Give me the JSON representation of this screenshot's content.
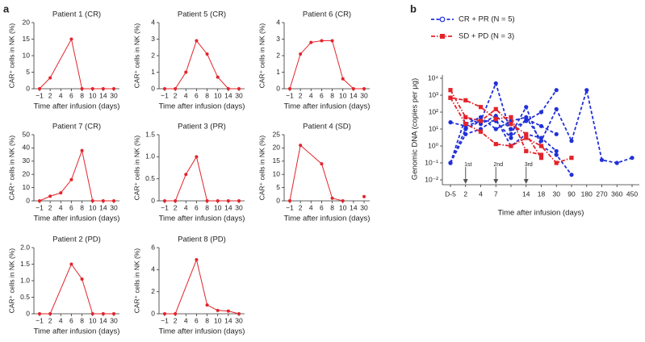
{
  "panel_labels": [
    "a",
    "b"
  ],
  "chart_data": [
    {
      "type": "line",
      "title": "Patient 1 (CR)",
      "xlabel": "Time after infusion (days)",
      "ylabel": "CAR⁺ cells in NK (%)",
      "color": "#e3232a",
      "categories": [
        "−1",
        "2",
        "4",
        "6",
        "8",
        "10",
        "14",
        "30"
      ],
      "x": [
        "−1",
        "2",
        "6",
        "8",
        "10",
        "14",
        "30"
      ],
      "values": [
        0,
        3.3,
        15,
        0,
        0,
        0,
        0
      ],
      "ylim": [
        0,
        20
      ],
      "yticks": [
        0,
        5,
        10,
        15,
        20
      ]
    },
    {
      "type": "line",
      "title": "Patient 5 (CR)",
      "xlabel": "Time after infusion (days)",
      "ylabel": "CAR⁺ cells in NK (%)",
      "color": "#e3232a",
      "categories": [
        "−1",
        "2",
        "4",
        "6",
        "8",
        "10",
        "14",
        "30"
      ],
      "x": [
        "−1",
        "2",
        "4",
        "6",
        "8",
        "10",
        "14",
        "30"
      ],
      "values": [
        0,
        0,
        1.0,
        2.9,
        2.1,
        0.7,
        0,
        0
      ],
      "ylim": [
        0,
        4
      ],
      "yticks": [
        0,
        1,
        2,
        3,
        4
      ]
    },
    {
      "type": "line",
      "title": "Patient 6 (CR)",
      "xlabel": "Time after infusion (days)",
      "ylabel": "CAR⁺ cells in NK (%)",
      "color": "#e3232a",
      "categories": [
        "−1",
        "2",
        "4",
        "6",
        "8",
        "10",
        "14",
        "30"
      ],
      "x": [
        "−1",
        "2",
        "4",
        "6",
        "8",
        "10",
        "14",
        "30"
      ],
      "values": [
        0,
        2.1,
        2.8,
        2.9,
        2.9,
        0.6,
        0,
        0
      ],
      "ylim": [
        0,
        4
      ],
      "yticks": [
        0,
        1,
        2,
        3,
        4
      ]
    },
    {
      "type": "line",
      "title": "Patient 7 (CR)",
      "xlabel": "Time after infusion (days)",
      "ylabel": "CAR⁺ cells in NK (%)",
      "color": "#e3232a",
      "categories": [
        "−1",
        "2",
        "4",
        "6",
        "8",
        "10",
        "14",
        "30"
      ],
      "x": [
        "−1",
        "2",
        "4",
        "6",
        "8",
        "10",
        "14",
        "30"
      ],
      "values": [
        0,
        3.5,
        6,
        16,
        38,
        0,
        0,
        0
      ],
      "ylim": [
        0,
        50
      ],
      "yticks": [
        0,
        10,
        20,
        30,
        40,
        50
      ]
    },
    {
      "type": "line",
      "title": "Patient 3 (PR)",
      "xlabel": "Time after infusion (days)",
      "ylabel": "CAR⁺ cells in NK (%)",
      "color": "#e3232a",
      "categories": [
        "−1",
        "2",
        "4",
        "6",
        "8",
        "10",
        "14",
        "30"
      ],
      "x": [
        "−1",
        "2",
        "4",
        "6",
        "8",
        "10",
        "14",
        "30"
      ],
      "values": [
        0,
        0,
        0.6,
        1.0,
        0,
        0,
        0,
        0
      ],
      "ylim": [
        0,
        1.5
      ],
      "yticks": [
        0,
        0.5,
        {
          "value": 1,
          "label": "1.0"
        },
        1.5
      ]
    },
    {
      "type": "line",
      "title": "Patient 4 (SD)",
      "xlabel": "Time after infusion (days)",
      "ylabel": "CAR⁺ cells in NK (%)",
      "color": "#e3232a",
      "categories": [
        "−1",
        "2",
        "4",
        "6",
        "8",
        "10",
        "14",
        "30"
      ],
      "x": [
        "−1",
        "2",
        "6",
        "8",
        "10",
        "14",
        "30"
      ],
      "values": [
        0,
        21,
        14,
        1,
        0,
        null,
        1.6
      ],
      "ylim": [
        0,
        25
      ],
      "yticks": [
        0,
        5,
        10,
        15,
        20,
        25
      ]
    },
    {
      "type": "line",
      "title": "Patient 2 (PD)",
      "xlabel": "Time after infusion (days)",
      "ylabel": "CAR⁺ cells in NK (%)",
      "color": "#e3232a",
      "categories": [
        "−1",
        "2",
        "4",
        "6",
        "8",
        "10",
        "14",
        "30"
      ],
      "x": [
        "−1",
        "2",
        "6",
        "8",
        "10",
        "14",
        "30"
      ],
      "values": [
        0,
        0,
        1.5,
        1.05,
        0,
        0,
        0
      ],
      "ylim": [
        0,
        2
      ],
      "yticks": [
        0,
        0.5,
        {
          "value": 1,
          "label": "1.0"
        },
        1.5,
        {
          "value": 2,
          "label": "2.0"
        }
      ]
    },
    {
      "type": "line",
      "title": "Patient 8 (PD)",
      "xlabel": "Time after infusion (days)",
      "ylabel": "CAR⁺ cells in NK (%)",
      "color": "#e3232a",
      "categories": [
        "−1",
        "2",
        "4",
        "6",
        "8",
        "10",
        "14",
        "30"
      ],
      "x": [
        "−1",
        "2",
        "6",
        "8",
        "10",
        "14",
        "30"
      ],
      "values": [
        0,
        0,
        4.9,
        0.8,
        0.3,
        0.25,
        0
      ],
      "ylim": [
        0,
        6
      ],
      "yticks": [
        0,
        2,
        4,
        6
      ]
    },
    {
      "type": "logline",
      "xlabel": "Time after infusion (days)",
      "ylabel": "Genomic DNA (copies per μg)",
      "log_y": true,
      "categories": [
        "D-5",
        "2",
        "4",
        "7",
        null,
        "14",
        "18",
        "30",
        "90",
        "180",
        "270",
        "360",
        "450"
      ],
      "ylim": [
        0.01,
        10000
      ],
      "yticks": [
        {
          "value": 0.01,
          "label": "10⁻²"
        },
        {
          "value": 0.1,
          "label": "10⁻¹"
        },
        {
          "value": 1,
          "label": "10⁰"
        },
        {
          "value": 10,
          "label": "10¹"
        },
        {
          "value": 100,
          "label": "10²"
        },
        {
          "value": 1000,
          "label": "10³"
        },
        {
          "value": 10000,
          "label": "10⁴"
        }
      ],
      "legend": [
        {
          "name": "CR + PR (N = 5)",
          "color": "#2030d8",
          "marker": "circle"
        },
        {
          "name": "SD + PD (N = 3)",
          "color": "#e3232a",
          "marker": "square"
        }
      ],
      "series": [
        {
          "color": "#2030d8",
          "marker": "circle",
          "values": [
            0.1,
            10,
            30,
            5000,
            5,
            200,
            1,
            0.3,
            0.02,
            null,
            null,
            null,
            null
          ]
        },
        {
          "color": "#2030d8",
          "marker": "circle",
          "values": [
            25,
            15,
            30,
            30,
            3,
            40,
            15,
            5,
            null,
            null,
            null,
            null,
            null
          ]
        },
        {
          "color": "#2030d8",
          "marker": "circle",
          "values": [
            0.1,
            50,
            20,
            60,
            10,
            30,
            100,
            2000,
            null,
            null,
            null,
            null,
            null
          ]
        },
        {
          "color": "#2030d8",
          "marker": "circle",
          "values": [
            null,
            20,
            50,
            10,
            30,
            50,
            2,
            150,
            2,
            2000,
            0.15,
            0.1,
            0.2
          ]
        },
        {
          "color": "#2030d8",
          "marker": "circle",
          "values": [
            0.1,
            5,
            10,
            40,
            1,
            5,
            3,
            0.5,
            null,
            null,
            null,
            null,
            null
          ]
        },
        {
          "color": "#e3232a",
          "marker": "square",
          "values": [
            2000,
            50,
            30,
            150,
            20,
            5,
            0.2,
            null,
            null,
            null,
            null,
            null,
            null
          ]
        },
        {
          "color": "#e3232a",
          "marker": "square",
          "values": [
            700,
            500,
            200,
            40,
            50,
            0.5,
            0.3,
            null,
            null,
            null,
            null,
            null,
            null
          ]
        },
        {
          "color": "#e3232a",
          "marker": "square",
          "values": [
            700,
            20,
            7,
            1.3,
            1,
            3,
            1,
            0.1,
            0.2,
            null,
            null,
            null,
            null
          ]
        }
      ],
      "annotations": [
        {
          "text": "1st",
          "x": "2"
        },
        {
          "text": "2nd",
          "x": "7"
        },
        {
          "text": "3rd",
          "x": "14"
        }
      ]
    }
  ]
}
